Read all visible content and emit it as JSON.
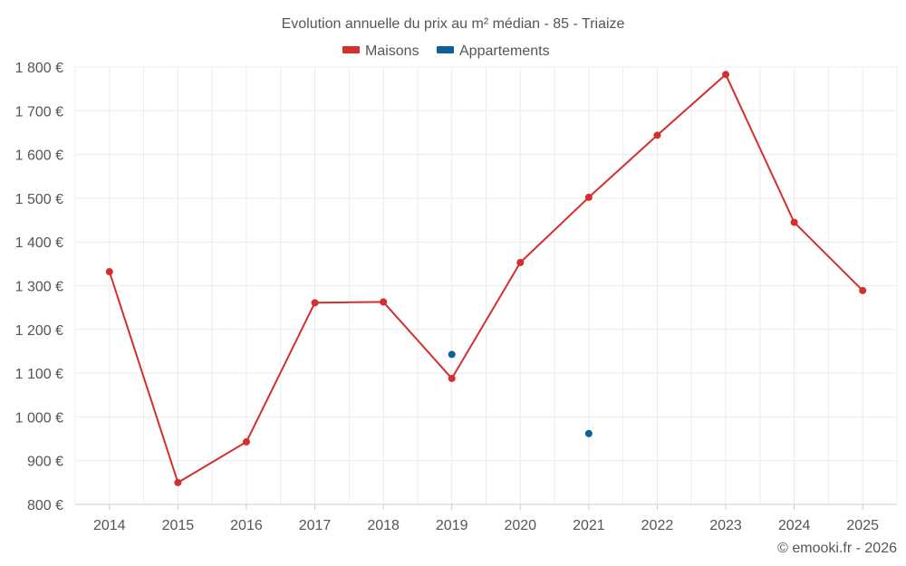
{
  "chart_data": {
    "type": "line",
    "title": "Evolution annuelle du prix au m² médian - 85 - Triaize",
    "categories": [
      "2014",
      "2015",
      "2016",
      "2017",
      "2018",
      "2019",
      "2020",
      "2021",
      "2022",
      "2023",
      "2024",
      "2025"
    ],
    "ylim": [
      800,
      1800
    ],
    "yticks": [
      800,
      900,
      1000,
      1100,
      1200,
      1300,
      1400,
      1500,
      1600,
      1700,
      1800
    ],
    "ytick_labels": [
      "800 €",
      "900 €",
      "1 000 €",
      "1 100 €",
      "1 200 €",
      "1 300 €",
      "1 400 €",
      "1 500 €",
      "1 600 €",
      "1 700 €",
      "1 800 €"
    ],
    "grid": true,
    "legend_position": "top-center",
    "series": [
      {
        "name": "Maisons",
        "color": "#d32f2f",
        "values": [
          1332,
          850,
          943,
          1261,
          1263,
          1088,
          1353,
          1502,
          1644,
          1783,
          1445,
          1289
        ]
      },
      {
        "name": "Appartements",
        "color": "#0d6098",
        "values": [
          null,
          null,
          null,
          null,
          null,
          1143,
          null,
          962,
          null,
          null,
          null,
          null
        ]
      }
    ]
  },
  "credit": "© emooki.fr - 2026"
}
